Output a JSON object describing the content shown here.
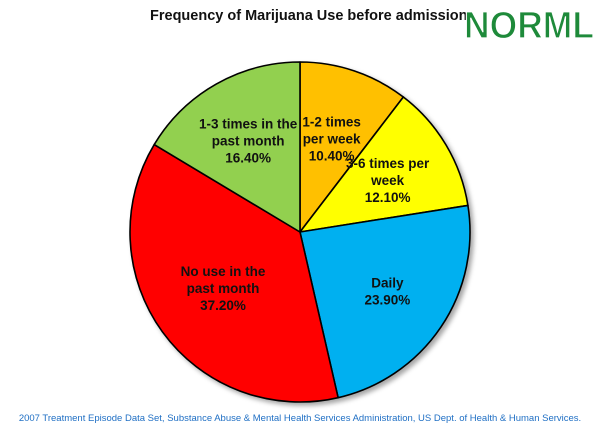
{
  "title": "Frequency of Marijuana Use before admission",
  "logo_text": "NORML",
  "source": "2007 Treatment Episode Data Set, Substance Abuse & Mental Health Services Administration, US Dept. of Health & Human Services.",
  "colors": {
    "logo": "#1e8a3a",
    "source_text": "#1f6fc4"
  },
  "chart_data": {
    "type": "pie",
    "title": "Frequency of Marijuana Use before admission",
    "unit": "%",
    "slices": [
      {
        "name": "1-2 times per week",
        "value": 10.4,
        "label_lines": [
          "1-2 times",
          "per week",
          "10.40%"
        ],
        "color": "#ffc000"
      },
      {
        "name": "3-6 times per week",
        "value": 12.1,
        "label_lines": [
          "3-6 times per",
          "week",
          "12.10%"
        ],
        "color": "#ffff00"
      },
      {
        "name": "Daily",
        "value": 23.9,
        "label_lines": [
          "Daily",
          "23.90%"
        ],
        "color": "#00b0f0"
      },
      {
        "name": "No use in the past month",
        "value": 37.2,
        "label_lines": [
          "No use in the",
          "past month",
          "37.20%"
        ],
        "color": "#ff0000"
      },
      {
        "name": "1-3 times in the past month",
        "value": 16.4,
        "label_lines": [
          "1-3 times in the",
          "past month",
          "16.40%"
        ],
        "color": "#92d050"
      }
    ]
  }
}
